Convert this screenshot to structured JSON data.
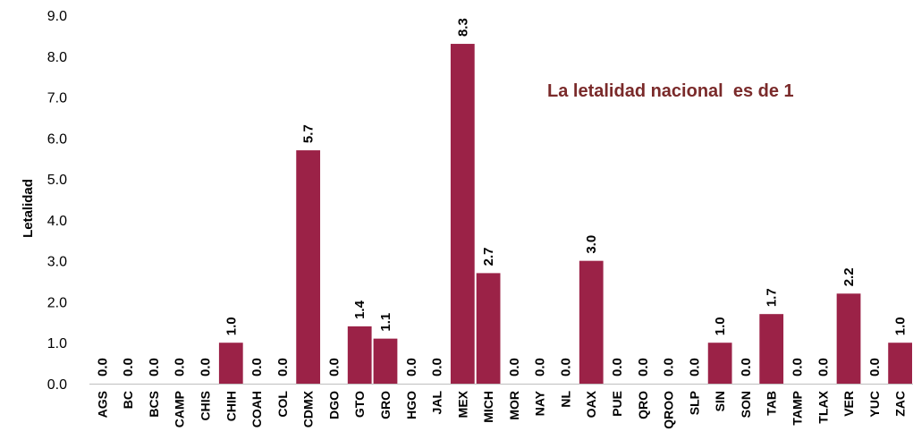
{
  "chart_data": {
    "type": "bar",
    "ylabel": "Letalidad",
    "ylim": [
      0,
      9
    ],
    "yticks": [
      "0.0",
      "1.0",
      "2.0",
      "3.0",
      "4.0",
      "5.0",
      "6.0",
      "7.0",
      "8.0",
      "9.0"
    ],
    "categories": [
      "AGS",
      "BC",
      "BCS",
      "CAMP",
      "CHIS",
      "CHIH",
      "COAH",
      "COL",
      "CDMX",
      "DGO",
      "GTO",
      "GRO",
      "HGO",
      "JAL",
      "MEX",
      "MICH",
      "MOR",
      "NAY",
      "NL",
      "OAX",
      "PUE",
      "QRO",
      "QROO",
      "SLP",
      "SIN",
      "SON",
      "TAB",
      "TAMP",
      "TLAX",
      "VER",
      "YUC",
      "ZAC"
    ],
    "values": [
      0.0,
      0.0,
      0.0,
      0.0,
      0.0,
      1.0,
      0.0,
      0.0,
      5.7,
      0.0,
      1.4,
      1.1,
      0.0,
      0.0,
      8.3,
      2.7,
      0.0,
      0.0,
      0.0,
      3.0,
      0.0,
      0.0,
      0.0,
      0.0,
      1.0,
      0.0,
      1.7,
      0.0,
      0.0,
      2.2,
      0.0,
      1.0
    ],
    "data_labels": [
      "0.0",
      "0.0",
      "0.0",
      "0.0",
      "0.0",
      "1.0",
      "0.0",
      "0.0",
      "5.7",
      "0.0",
      "1.4",
      "1.1",
      "0.0",
      "0.0",
      "8.3",
      "2.7",
      "0.0",
      "0.0",
      "0.0",
      "3.0",
      "0.0",
      "0.0",
      "0.0",
      "0.0",
      "1.0",
      "0.0",
      "1.7",
      "0.0",
      "0.0",
      "2.2",
      "0.0",
      "1.0"
    ],
    "annotation": "La letalidad nacional  es de 1",
    "bar_color": "#9B2247",
    "annotation_color": "#7A2A2A",
    "grid": false,
    "legend": "none"
  }
}
